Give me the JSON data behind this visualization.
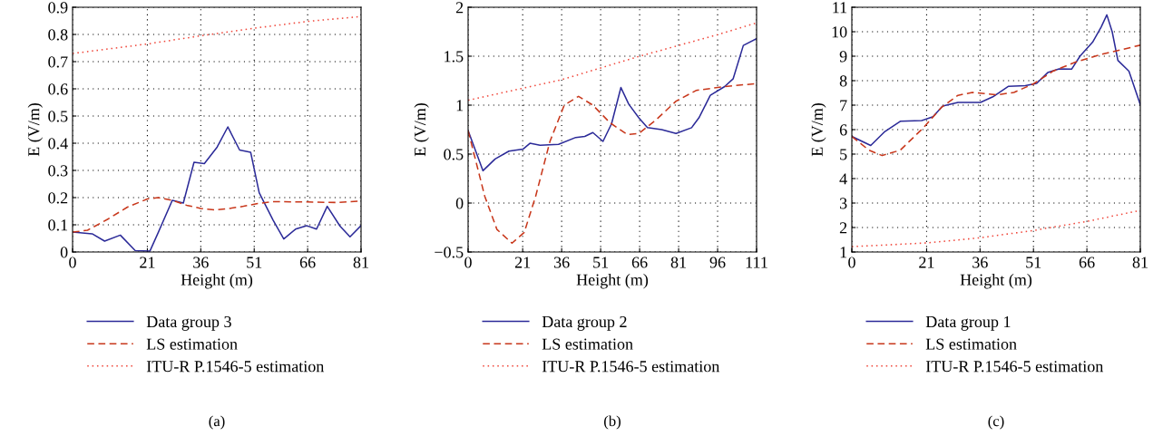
{
  "chart_data": [
    {
      "type": "line",
      "xlabel": "Height (m)",
      "ylabel": "E (V/m)",
      "xlim": [
        0,
        81
      ],
      "xticks": [
        0,
        21,
        36,
        51,
        66,
        81
      ],
      "ylim": [
        0,
        0.9
      ],
      "yticks": [
        0,
        0.1,
        0.2,
        0.3,
        0.4,
        0.5,
        0.6,
        0.7,
        0.8,
        0.9
      ],
      "grid": true,
      "legend": "bottom",
      "annotations": [
        "(a)"
      ],
      "series": [
        {
          "name": "Data group 3",
          "color": "#2b2a98",
          "line_style": "solid",
          "x": [
            0,
            5.5,
            9,
            13.4,
            17.6,
            21.7,
            24.1,
            28,
            31.1,
            34.1,
            37,
            40.6,
            43.6,
            46.9,
            50,
            52.4,
            56.3,
            59.3,
            62.6,
            65.7,
            68.5,
            71.5,
            75.1,
            77.9,
            81
          ],
          "values": [
            0.073,
            0.067,
            0.04,
            0.062,
            0.005,
            0.003,
            0.073,
            0.19,
            0.18,
            0.33,
            0.325,
            0.386,
            0.46,
            0.375,
            0.367,
            0.218,
            0.117,
            0.048,
            0.084,
            0.097,
            0.084,
            0.168,
            0.095,
            0.056,
            0.097
          ]
        },
        {
          "name": "LS estimation",
          "color": "#c8371b",
          "line_style": "dashed",
          "x": [
            0,
            4.2,
            9.8,
            15.4,
            21,
            24,
            28,
            32,
            36,
            40,
            44,
            48,
            52,
            56,
            66,
            74,
            81
          ],
          "values": [
            0.073,
            0.08,
            0.12,
            0.165,
            0.195,
            0.2,
            0.19,
            0.172,
            0.16,
            0.155,
            0.16,
            0.168,
            0.178,
            0.185,
            0.184,
            0.182,
            0.187
          ]
        },
        {
          "name": "ITU-R P.1546-5 estimation",
          "color": "#f0463a",
          "line_style": "dotted",
          "x": [
            0,
            21,
            36,
            51,
            66,
            81
          ],
          "values": [
            0.73,
            0.765,
            0.795,
            0.823,
            0.848,
            0.866
          ]
        }
      ]
    },
    {
      "type": "line",
      "xlabel": "Height (m)",
      "ylabel": "E (V/m)",
      "xlim": [
        0,
        111
      ],
      "xticks": [
        0,
        21,
        36,
        51,
        66,
        81,
        96,
        111
      ],
      "ylim": [
        -0.5,
        2
      ],
      "yticks": [
        {
          "value": -0.5,
          "label": "−0.5"
        },
        0,
        0.5,
        1,
        1.5,
        2
      ],
      "grid": true,
      "legend": "bottom",
      "annotations": [
        "(b)"
      ],
      "series": [
        {
          "name": "Data group 2",
          "color": "#2b2a98",
          "line_style": "solid",
          "x": [
            0,
            5.7,
            10.4,
            15.7,
            21.1,
            23.8,
            27.7,
            34.8,
            41.4,
            44.9,
            48,
            51.9,
            55.2,
            58.8,
            61.8,
            65.7,
            69,
            74.5,
            80,
            86,
            88.8,
            93.2,
            98.7,
            102,
            105.9,
            111
          ],
          "values": [
            0.74,
            0.33,
            0.45,
            0.53,
            0.55,
            0.61,
            0.59,
            0.6,
            0.67,
            0.68,
            0.72,
            0.63,
            0.81,
            1.18,
            1.01,
            0.87,
            0.77,
            0.75,
            0.71,
            0.77,
            0.87,
            1.1,
            1.19,
            1.27,
            1.61,
            1.68
          ]
        },
        {
          "name": "LS estimation",
          "color": "#c8371b",
          "line_style": "dashed",
          "x": [
            0,
            6.4,
            11.1,
            16.9,
            21.6,
            26,
            31.5,
            37,
            42.5,
            48,
            54.6,
            61.2,
            65.7,
            72.3,
            80,
            87.7,
            98.7,
            111
          ],
          "values": [
            0.74,
            0.07,
            -0.27,
            -0.41,
            -0.3,
            0.07,
            0.63,
            1.0,
            1.09,
            1.0,
            0.82,
            0.7,
            0.71,
            0.85,
            1.04,
            1.15,
            1.19,
            1.22
          ]
        },
        {
          "name": "ITU-R P.1546-5 estimation",
          "color": "#f0463a",
          "line_style": "dotted",
          "x": [
            0,
            36,
            66,
            96,
            111
          ],
          "values": [
            1.05,
            1.26,
            1.5,
            1.72,
            1.84
          ]
        }
      ]
    },
    {
      "type": "line",
      "xlabel": "Height (m)",
      "ylabel": "E (V/m)",
      "xlim": [
        0,
        81
      ],
      "xticks": [
        0,
        21,
        36,
        51,
        66,
        81
      ],
      "ylim": [
        1,
        11
      ],
      "yticks": [
        1,
        2,
        3,
        4,
        5,
        6,
        7,
        8,
        9,
        10,
        11
      ],
      "grid": true,
      "legend": "bottom",
      "annotations": [
        "(c)"
      ],
      "series": [
        {
          "name": "Data group 1",
          "color": "#2b2a98",
          "line_style": "solid",
          "x": [
            0,
            5.3,
            9.1,
            13.6,
            19.6,
            22.8,
            25.5,
            29.8,
            36.1,
            39.6,
            44,
            48.7,
            51.9,
            55,
            58.2,
            61.7,
            64.1,
            67.6,
            70,
            71.6,
            73.1,
            74.7,
            77.8,
            81
          ],
          "values": [
            5.72,
            5.35,
            5.9,
            6.34,
            6.37,
            6.53,
            6.96,
            7.11,
            7.11,
            7.34,
            7.77,
            7.8,
            7.89,
            8.33,
            8.48,
            8.47,
            9.01,
            9.57,
            10.19,
            10.69,
            10.0,
            8.83,
            8.39,
            7.02
          ]
        },
        {
          "name": "LS estimation",
          "color": "#c8371b",
          "line_style": "dashed",
          "x": [
            0,
            4.8,
            8.5,
            13.6,
            20.2,
            25.1,
            29.8,
            33.8,
            40.8,
            45.5,
            51,
            56.5,
            62.8,
            69.9,
            81
          ],
          "values": [
            5.72,
            5.16,
            4.94,
            5.16,
            6.09,
            6.9,
            7.4,
            7.52,
            7.42,
            7.52,
            7.87,
            8.39,
            8.76,
            9.07,
            9.45
          ]
        },
        {
          "name": "ITU-R P.1546-5 estimation",
          "color": "#f0463a",
          "line_style": "dotted",
          "x": [
            0,
            21,
            36,
            51,
            66,
            81
          ],
          "values": [
            1.22,
            1.37,
            1.58,
            1.88,
            2.25,
            2.7
          ]
        }
      ]
    }
  ]
}
